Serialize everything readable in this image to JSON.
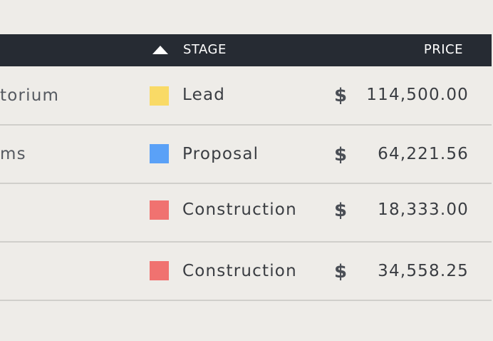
{
  "header": {
    "stage_label": "STAGE",
    "price_label": "PRICE",
    "sort_icon": "triangle-up-icon"
  },
  "rows": [
    {
      "name": "torium",
      "stage": "Lead",
      "stage_color": "#f9da66",
      "currency": "$",
      "price": "114,500.00"
    },
    {
      "name": "ms",
      "stage": "Proposal",
      "stage_color": "#5aa1f7",
      "currency": "$",
      "price": "64,221.56"
    },
    {
      "name": "",
      "stage": "Construction",
      "stage_color": "#f07270",
      "currency": "$",
      "price": "18,333.00"
    },
    {
      "name": "",
      "stage": "Construction",
      "stage_color": "#f07270",
      "currency": "$",
      "price": "34,558.25"
    }
  ],
  "colors": {
    "header_bg": "#262b33",
    "page_bg": "#eeece8",
    "divider": "#d0cfcb"
  }
}
